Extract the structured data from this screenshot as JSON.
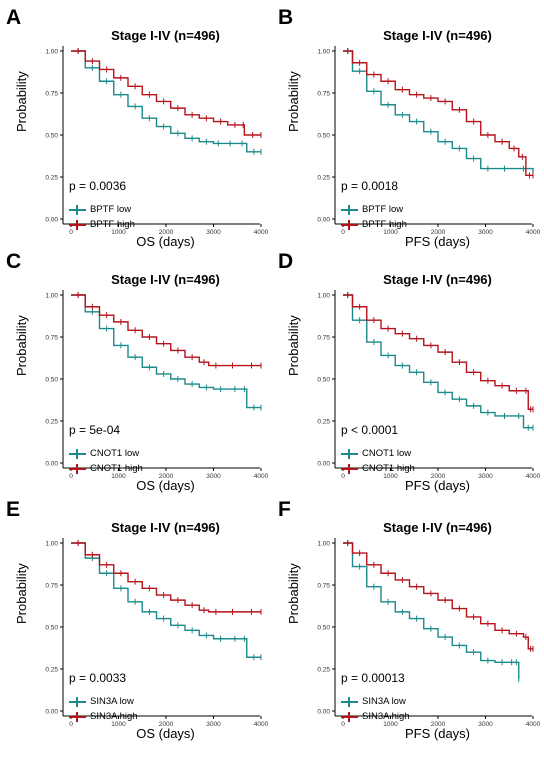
{
  "colors": {
    "low": "#1b8a8a",
    "high": "#b5121b",
    "axis": "#000000"
  },
  "chart_data": [
    {
      "type": "line",
      "panel_letter": "A",
      "title": "Stage I-IV (n=496)",
      "xlabel": "OS (days)",
      "ylabel": "Probability",
      "p_value": "p = 0.0036",
      "xlim": [
        0,
        4150
      ],
      "ylim": [
        0,
        1.0
      ],
      "xticks": [
        "0",
        "1000",
        "2000",
        "3000",
        "4000"
      ],
      "yticks": [
        "0.00",
        "0.25",
        "0.50",
        "0.75",
        "1.00"
      ],
      "legend_position": "bottom-left",
      "series": [
        {
          "name": "BPTF low",
          "color_key": "low",
          "x": [
            0,
            300,
            600,
            900,
            1200,
            1500,
            1800,
            2100,
            2400,
            2700,
            3000,
            3200,
            3500,
            3700,
            4000
          ],
          "y": [
            1.0,
            0.9,
            0.82,
            0.74,
            0.67,
            0.6,
            0.55,
            0.51,
            0.48,
            0.46,
            0.45,
            0.45,
            0.45,
            0.4,
            0.4
          ]
        },
        {
          "name": "BPTF high",
          "color_key": "high",
          "x": [
            0,
            300,
            600,
            900,
            1200,
            1500,
            1800,
            2100,
            2400,
            2700,
            3000,
            3300,
            3600,
            3650,
            4000
          ],
          "y": [
            1.0,
            0.94,
            0.89,
            0.84,
            0.79,
            0.74,
            0.7,
            0.66,
            0.62,
            0.6,
            0.58,
            0.56,
            0.56,
            0.5,
            0.5
          ]
        }
      ]
    },
    {
      "type": "line",
      "panel_letter": "B",
      "title": "Stage I-IV (n=496)",
      "xlabel": "PFS (days)",
      "ylabel": "Probability",
      "p_value": "p = 0.0018",
      "xlim": [
        0,
        4150
      ],
      "ylim": [
        0,
        1.0
      ],
      "xticks": [
        "0",
        "1000",
        "2000",
        "3000",
        "4000"
      ],
      "yticks": [
        "0.00",
        "0.25",
        "0.50",
        "0.75",
        "1.00"
      ],
      "legend_position": "bottom-left",
      "series": [
        {
          "name": "BPTF low",
          "color_key": "low",
          "x": [
            0,
            200,
            500,
            800,
            1100,
            1400,
            1700,
            2000,
            2300,
            2600,
            2900,
            3200,
            3600,
            4000
          ],
          "y": [
            1.0,
            0.88,
            0.76,
            0.68,
            0.62,
            0.58,
            0.52,
            0.46,
            0.42,
            0.36,
            0.3,
            0.3,
            0.3,
            0.28
          ]
        },
        {
          "name": "BPTF high",
          "color_key": "high",
          "x": [
            0,
            200,
            500,
            800,
            1100,
            1400,
            1700,
            2000,
            2300,
            2600,
            2900,
            3200,
            3500,
            3700,
            3850,
            4000
          ],
          "y": [
            1.0,
            0.93,
            0.86,
            0.82,
            0.77,
            0.74,
            0.72,
            0.7,
            0.65,
            0.58,
            0.5,
            0.46,
            0.42,
            0.37,
            0.26,
            0.26
          ]
        }
      ]
    },
    {
      "type": "line",
      "panel_letter": "C",
      "title": "Stage I-IV (n=496)",
      "xlabel": "OS (days)",
      "ylabel": "Probability",
      "p_value": "p = 5e-04",
      "xlim": [
        0,
        4150
      ],
      "ylim": [
        0,
        1.0
      ],
      "xticks": [
        "0",
        "1000",
        "2000",
        "3000",
        "4000"
      ],
      "yticks": [
        "0.00",
        "0.25",
        "0.50",
        "0.75",
        "1.00"
      ],
      "legend_position": "bottom-left",
      "series": [
        {
          "name": "CNOT1 low",
          "color_key": "low",
          "x": [
            0,
            300,
            600,
            900,
            1200,
            1500,
            1800,
            2100,
            2400,
            2700,
            3000,
            3300,
            3600,
            3700,
            4000
          ],
          "y": [
            1.0,
            0.9,
            0.8,
            0.7,
            0.63,
            0.57,
            0.53,
            0.5,
            0.47,
            0.45,
            0.44,
            0.44,
            0.44,
            0.33,
            0.33
          ]
        },
        {
          "name": "CNOT1 high",
          "color_key": "high",
          "x": [
            0,
            300,
            600,
            900,
            1200,
            1500,
            1800,
            2100,
            2400,
            2700,
            2900,
            3200,
            3600,
            4000
          ],
          "y": [
            1.0,
            0.93,
            0.88,
            0.84,
            0.79,
            0.75,
            0.71,
            0.67,
            0.63,
            0.6,
            0.58,
            0.58,
            0.58,
            0.58
          ]
        }
      ]
    },
    {
      "type": "line",
      "panel_letter": "D",
      "title": "Stage I-IV (n=496)",
      "xlabel": "PFS (days)",
      "ylabel": "Probability",
      "p_value": "p < 0.0001",
      "xlim": [
        0,
        4150
      ],
      "ylim": [
        0,
        1.0
      ],
      "xticks": [
        "0",
        "1000",
        "2000",
        "3000",
        "4000"
      ],
      "yticks": [
        "0.00",
        "0.25",
        "0.50",
        "0.75",
        "1.00"
      ],
      "legend_position": "bottom-left",
      "series": [
        {
          "name": "CNOT1 low",
          "color_key": "low",
          "x": [
            0,
            200,
            500,
            800,
            1100,
            1400,
            1700,
            2000,
            2300,
            2600,
            2900,
            3200,
            3600,
            3800,
            4000
          ],
          "y": [
            1.0,
            0.85,
            0.72,
            0.64,
            0.58,
            0.54,
            0.48,
            0.42,
            0.38,
            0.34,
            0.3,
            0.28,
            0.28,
            0.21,
            0.21
          ]
        },
        {
          "name": "CNOT1 high",
          "color_key": "high",
          "x": [
            0,
            200,
            500,
            800,
            1100,
            1400,
            1700,
            2000,
            2300,
            2600,
            2900,
            3200,
            3500,
            3800,
            3900,
            4000
          ],
          "y": [
            1.0,
            0.93,
            0.85,
            0.8,
            0.77,
            0.74,
            0.7,
            0.66,
            0.6,
            0.54,
            0.49,
            0.46,
            0.43,
            0.43,
            0.32,
            0.32
          ]
        }
      ]
    },
    {
      "type": "line",
      "panel_letter": "E",
      "title": "Stage I-IV (n=496)",
      "xlabel": "OS (days)",
      "ylabel": "Probability",
      "p_value": "p = 0.0033",
      "xlim": [
        0,
        4150
      ],
      "ylim": [
        0,
        1.0
      ],
      "xticks": [
        "0",
        "1000",
        "2000",
        "3000",
        "4000"
      ],
      "yticks": [
        "0.00",
        "0.25",
        "0.50",
        "0.75",
        "1.00"
      ],
      "legend_position": "bottom-left",
      "series": [
        {
          "name": "SIN3A low",
          "color_key": "low",
          "x": [
            0,
            300,
            600,
            900,
            1200,
            1500,
            1800,
            2100,
            2400,
            2700,
            3000,
            3300,
            3600,
            3700,
            4000
          ],
          "y": [
            1.0,
            0.91,
            0.82,
            0.73,
            0.65,
            0.59,
            0.55,
            0.51,
            0.48,
            0.45,
            0.43,
            0.43,
            0.43,
            0.32,
            0.32
          ]
        },
        {
          "name": "SIN3A high",
          "color_key": "high",
          "x": [
            0,
            300,
            600,
            900,
            1200,
            1500,
            1800,
            2100,
            2400,
            2700,
            2900,
            3200,
            3600,
            4000
          ],
          "y": [
            1.0,
            0.93,
            0.87,
            0.82,
            0.77,
            0.73,
            0.69,
            0.66,
            0.63,
            0.6,
            0.59,
            0.59,
            0.59,
            0.59
          ]
        }
      ]
    },
    {
      "type": "line",
      "panel_letter": "F",
      "title": "Stage I-IV (n=496)",
      "xlabel": "PFS (days)",
      "ylabel": "Probability",
      "p_value": "p = 0.00013",
      "xlim": [
        0,
        4150
      ],
      "ylim": [
        0,
        1.0
      ],
      "xticks": [
        "0",
        "1000",
        "2000",
        "3000",
        "4000"
      ],
      "yticks": [
        "0.00",
        "0.25",
        "0.50",
        "0.75",
        "1.00"
      ],
      "legend_position": "bottom-left",
      "series": [
        {
          "name": "SIN3A low",
          "color_key": "low",
          "x": [
            0,
            200,
            500,
            800,
            1100,
            1400,
            1700,
            2000,
            2300,
            2600,
            2900,
            3200,
            3500,
            3600,
            3700
          ],
          "y": [
            1.0,
            0.86,
            0.74,
            0.65,
            0.59,
            0.55,
            0.49,
            0.44,
            0.39,
            0.35,
            0.3,
            0.29,
            0.29,
            0.29,
            0.19
          ]
        },
        {
          "name": "SIN3A high",
          "color_key": "high",
          "x": [
            0,
            200,
            500,
            800,
            1100,
            1400,
            1700,
            2000,
            2300,
            2600,
            2900,
            3200,
            3500,
            3800,
            3900,
            4000
          ],
          "y": [
            1.0,
            0.94,
            0.87,
            0.82,
            0.78,
            0.74,
            0.7,
            0.66,
            0.61,
            0.56,
            0.52,
            0.48,
            0.46,
            0.44,
            0.37,
            0.37
          ]
        }
      ]
    }
  ]
}
